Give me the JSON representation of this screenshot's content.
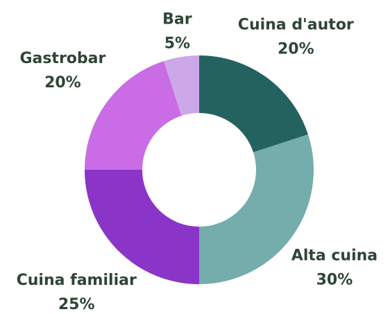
{
  "chart_data": {
    "type": "donut",
    "categories": [
      "Cuina d'autor",
      "Alta cuina",
      "Cuina familiar",
      "Gastrobar",
      "Bar"
    ],
    "values": [
      20,
      30,
      25,
      20,
      5
    ],
    "value_labels": [
      "20%",
      "30%",
      "25%",
      "20%",
      "5%"
    ],
    "colors": [
      "#246260",
      "#74adab",
      "#8a34c8",
      "#c96ce6",
      "#cda8e8"
    ]
  }
}
